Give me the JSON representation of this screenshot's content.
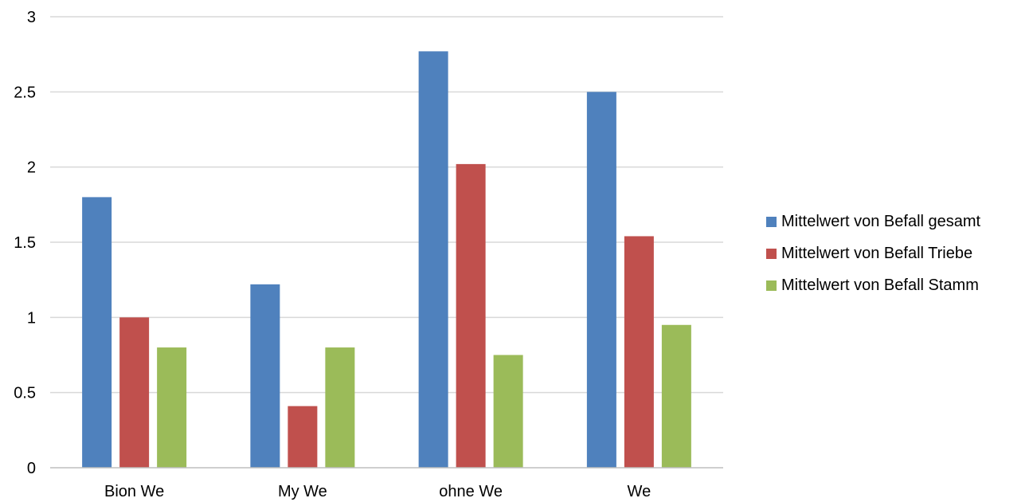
{
  "chart_data": {
    "type": "bar",
    "categories": [
      "Bion We",
      "My We",
      "ohne We",
      "We"
    ],
    "series": [
      {
        "name": "Mittelwert von Befall gesamt",
        "color": "#4F81BD",
        "values": [
          1.8,
          1.22,
          2.77,
          2.5
        ]
      },
      {
        "name": "Mittelwert von Befall Triebe",
        "color": "#C0504D",
        "values": [
          1.0,
          0.41,
          2.02,
          1.54
        ]
      },
      {
        "name": "Mittelwert von Befall Stamm",
        "color": "#9BBB59",
        "values": [
          0.8,
          0.8,
          0.75,
          0.95
        ]
      }
    ],
    "yticks": [
      "0",
      "0.5",
      "1",
      "1.5",
      "2",
      "2.5",
      "3"
    ],
    "ylim": [
      0,
      3
    ],
    "grid": true,
    "legend_position": "right",
    "title": "",
    "xlabel": "",
    "ylabel": ""
  }
}
